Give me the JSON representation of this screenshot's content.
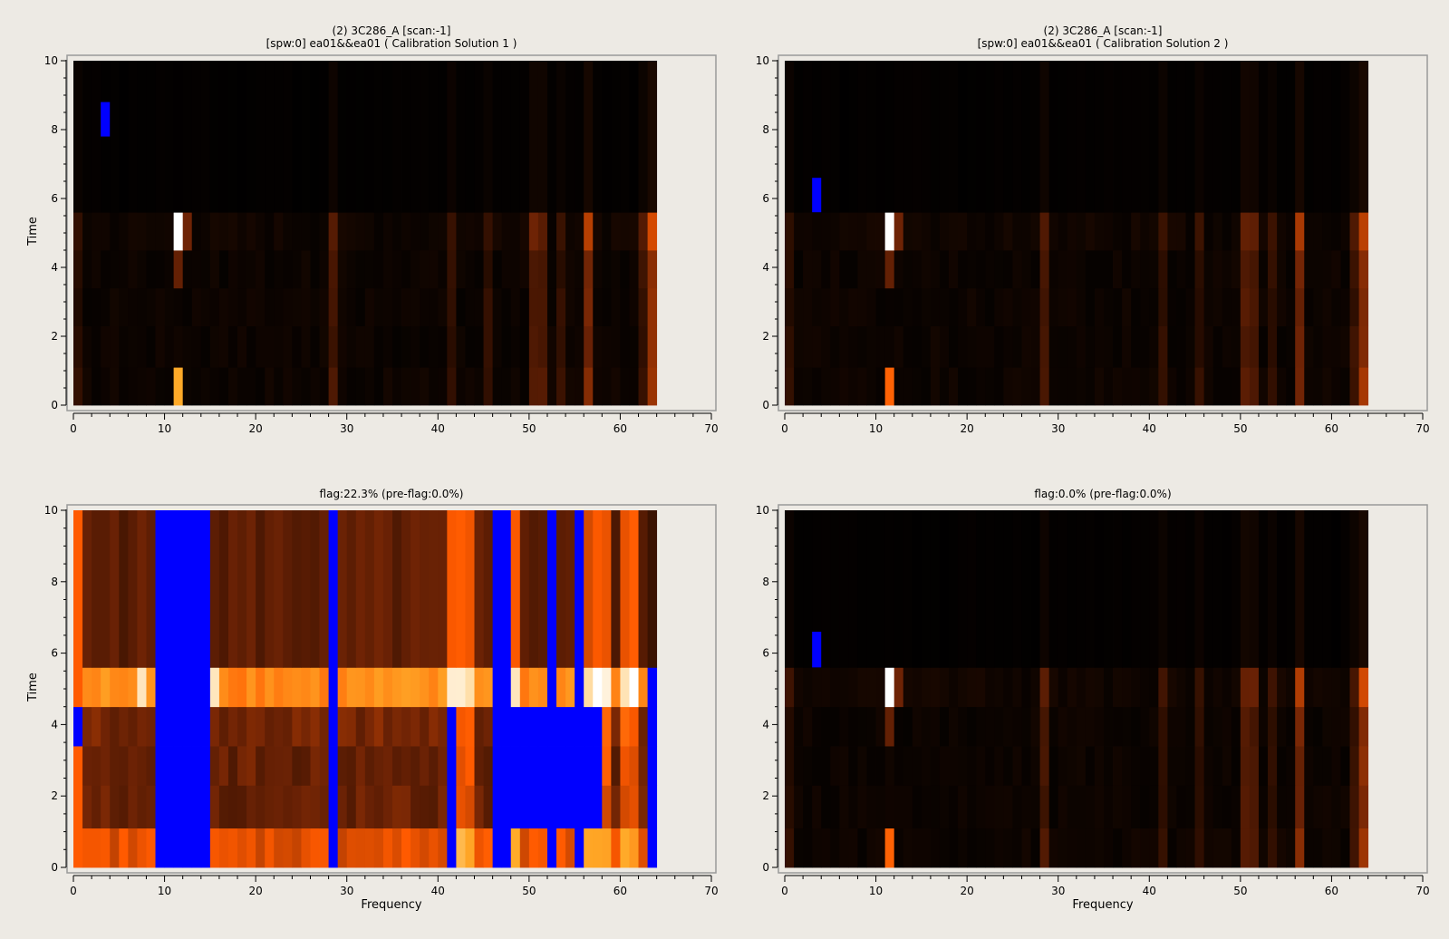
{
  "window": {
    "background": "#edeae4"
  },
  "panels": [
    {
      "id": "top-left",
      "title_lines": [
        "(2) 3C286_A  [scan:-1]",
        "[spw:0] ea01&&ea01  ( Calibration Solution 1 )"
      ],
      "xlabel": "",
      "ylabel": "Time",
      "xticks": [
        "0",
        "10",
        "20",
        "30",
        "40",
        "50",
        "60",
        "70"
      ],
      "yticks": [
        "0",
        "2",
        "4",
        "6",
        "8",
        "10"
      ]
    },
    {
      "id": "top-right",
      "title_lines": [
        "(2) 3C286_A  [scan:-1]",
        "[spw:0] ea01&&ea01  ( Calibration Solution 2 )"
      ],
      "xlabel": "",
      "ylabel": "",
      "xticks": [
        "0",
        "10",
        "20",
        "30",
        "40",
        "50",
        "60",
        "70"
      ],
      "yticks": [
        "0",
        "2",
        "4",
        "6",
        "8",
        "10"
      ]
    },
    {
      "id": "bottom-left",
      "title_lines": [
        "flag:22.3% (pre-flag:0.0%)"
      ],
      "xlabel": "Frequency",
      "ylabel": "Time",
      "xticks": [
        "0",
        "10",
        "20",
        "30",
        "40",
        "50",
        "60",
        "70"
      ],
      "yticks": [
        "0",
        "2",
        "4",
        "6",
        "8",
        "10"
      ]
    },
    {
      "id": "bottom-right",
      "title_lines": [
        "flag:0.0% (pre-flag:0.0%)"
      ],
      "xlabel": "Frequency",
      "ylabel": "",
      "xticks": [
        "0",
        "10",
        "20",
        "30",
        "40",
        "50",
        "60",
        "70"
      ],
      "yticks": [
        "0",
        "2",
        "4",
        "6",
        "8",
        "10"
      ]
    }
  ],
  "chart_data": [
    {
      "type": "heatmap",
      "panel": "top-left",
      "title": "(2) 3C286_A  [scan:-1] / [spw:0] ea01&&ea01  ( Calibration Solution 1 )",
      "xlabel": "",
      "ylabel": "Time",
      "xlim": [
        0,
        70
      ],
      "ylim": [
        0,
        10
      ],
      "channels": 64,
      "time_rows": [
        0.5,
        1.5,
        2.5,
        3.5,
        5.0,
        8.0
      ],
      "colormap": "black-orange-white",
      "flag_color": "#0000ff",
      "flagged_cells": [
        {
          "channel": 3,
          "time_range": [
            7.8,
            8.8
          ]
        }
      ],
      "bright_cells": [
        {
          "channel": 11,
          "time_range": [
            4.4,
            5.5
          ],
          "level": "white"
        },
        {
          "channel": 11,
          "time_range": [
            0.0,
            1.1
          ],
          "level": "orange"
        }
      ]
    },
    {
      "type": "heatmap",
      "panel": "top-right",
      "title": "(2) 3C286_A  [scan:-1] / [spw:0] ea01&&ea01  ( Calibration Solution 2 )",
      "xlabel": "",
      "ylabel": "",
      "xlim": [
        0,
        70
      ],
      "ylim": [
        0,
        10
      ],
      "channels": 64,
      "colormap": "black-orange-white",
      "flag_color": "#0000ff",
      "flagged_cells": [
        {
          "channel": 3,
          "time_range": [
            5.6,
            6.6
          ]
        }
      ],
      "bright_cells": [
        {
          "channel": 11,
          "time_range": [
            4.4,
            5.5
          ],
          "level": "white"
        },
        {
          "channel": 11,
          "time_range": [
            0.0,
            1.1
          ],
          "level": "orange"
        }
      ]
    },
    {
      "type": "heatmap",
      "panel": "bottom-left",
      "title": "flag:22.3% (pre-flag:0.0%)",
      "xlabel": "Frequency",
      "ylabel": "Time",
      "xlim": [
        0,
        70
      ],
      "ylim": [
        0,
        10
      ],
      "channels": 64,
      "colormap": "black-orange-white",
      "flag_color": "#0000ff",
      "flag_percent": 22.3,
      "preflag_percent": 0.0
    },
    {
      "type": "heatmap",
      "panel": "bottom-right",
      "title": "flag:0.0% (pre-flag:0.0%)",
      "xlabel": "Frequency",
      "ylabel": "",
      "xlim": [
        0,
        70
      ],
      "ylim": [
        0,
        10
      ],
      "channels": 64,
      "colormap": "black-orange-white",
      "flag_color": "#0000ff",
      "flag_percent": 0.0,
      "preflag_percent": 0.0,
      "flagged_cells": [
        {
          "channel": 3,
          "time_range": [
            5.6,
            6.6
          ]
        }
      ],
      "bright_cells": [
        {
          "channel": 11,
          "time_range": [
            4.4,
            5.5
          ],
          "level": "white"
        },
        {
          "channel": 11,
          "time_range": [
            0.0,
            1.1
          ],
          "level": "orange"
        }
      ]
    }
  ]
}
